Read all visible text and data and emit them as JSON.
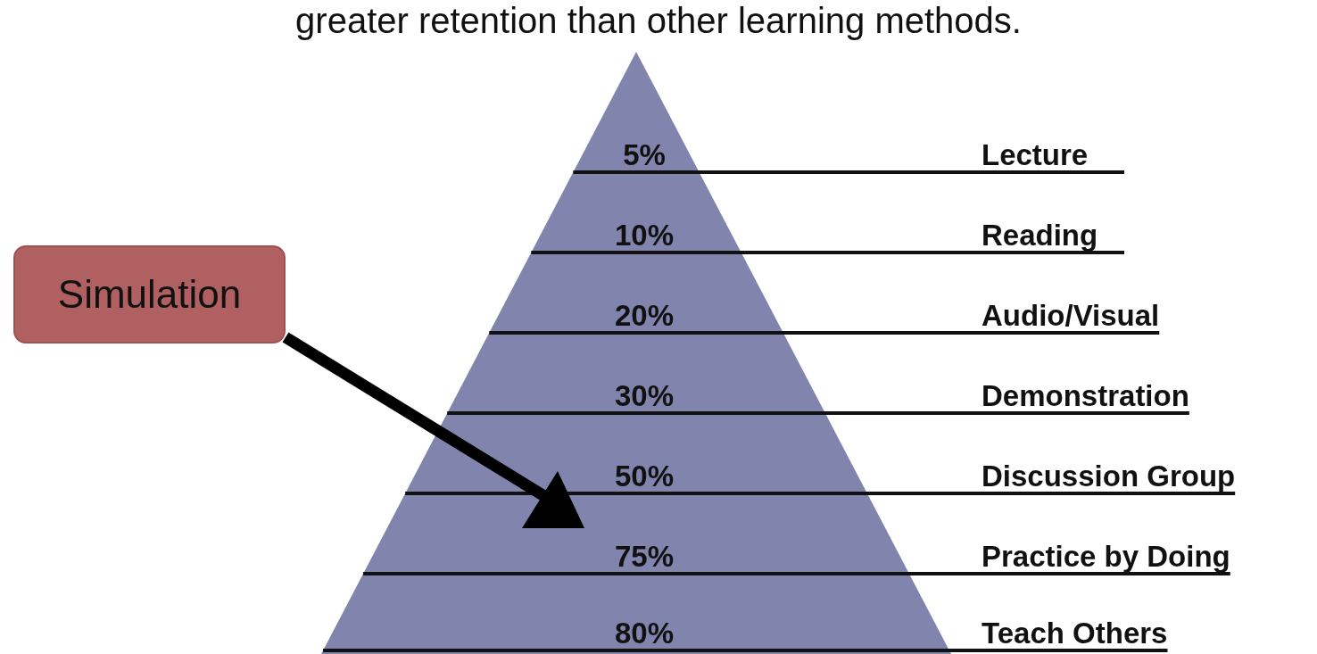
{
  "chart_data": {
    "type": "other",
    "title": "greater retention than other learning methods.",
    "categories": [
      "Lecture",
      "Reading",
      "Audio/Visual",
      "Demonstration",
      "Discussion Group",
      "Practice by Doing",
      "Teach Others"
    ],
    "values": [
      5,
      10,
      20,
      30,
      50,
      75,
      80
    ],
    "value_labels": [
      "5%",
      "10%",
      "20%",
      "30%",
      "50%",
      "75%",
      "80%"
    ],
    "color": "#8185ad",
    "annotations": [
      "Simulation"
    ]
  }
}
